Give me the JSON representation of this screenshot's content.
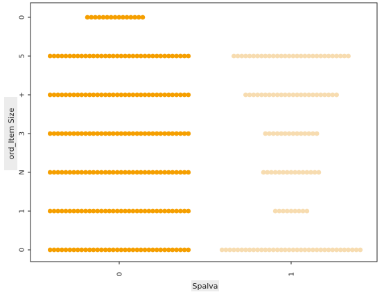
{
  "chart_data": {
    "type": "scatter",
    "subtype": "swarm",
    "xlabel": "Spalva",
    "ylabel": "ord_Item Size",
    "x_categories": [
      "0",
      "1"
    ],
    "y_ticks": [
      "0",
      "1",
      "N",
      "3",
      "+",
      "5",
      "0"
    ],
    "series": [
      {
        "x_category": "0",
        "color": "#f59f00",
        "rows": [
          {
            "y": 6,
            "count": 15
          },
          {
            "y": 5,
            "count": 36
          },
          {
            "y": 4,
            "count": 36
          },
          {
            "y": 3,
            "count": 36
          },
          {
            "y": 2,
            "count": 36
          },
          {
            "y": 1,
            "count": 36
          },
          {
            "y": 0,
            "count": 36
          }
        ]
      },
      {
        "x_category": "1",
        "color": "#f7dcb0",
        "rows": [
          {
            "y": 5,
            "count": 30
          },
          {
            "y": 4,
            "count": 24
          },
          {
            "y": 3,
            "count": 14
          },
          {
            "y": 2,
            "count": 15
          },
          {
            "y": 1,
            "count": 9
          },
          {
            "y": 0,
            "count": 36
          }
        ]
      }
    ],
    "ylim": [
      -0.4,
      6.4
    ],
    "grid": false,
    "legend": "none"
  }
}
